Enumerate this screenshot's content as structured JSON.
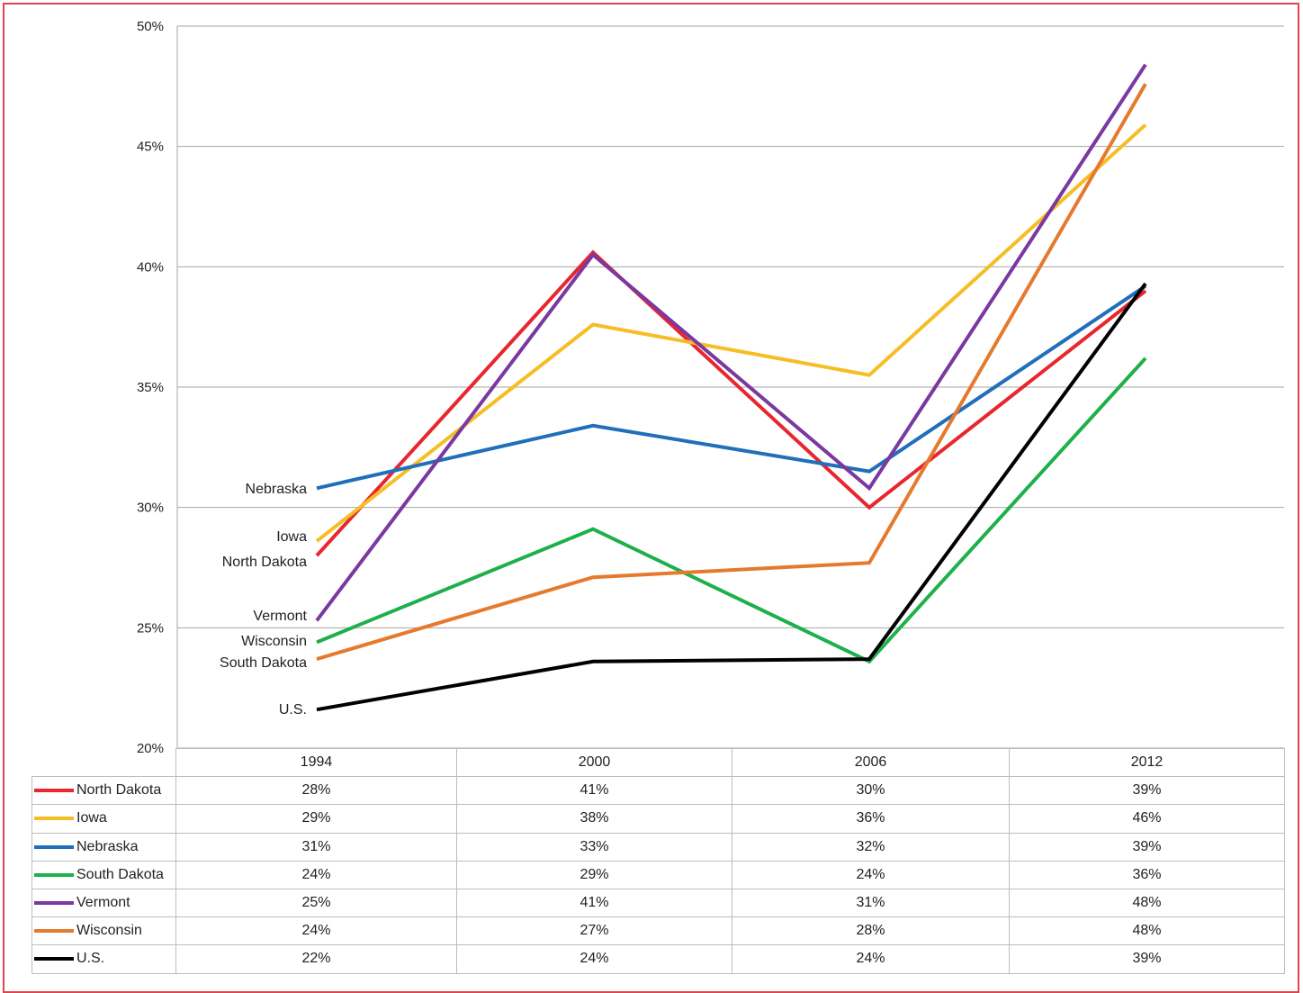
{
  "chart_data": {
    "type": "line",
    "title": "",
    "xlabel": "",
    "ylabel": "",
    "categories": [
      "1994",
      "2000",
      "2006",
      "2012"
    ],
    "ylim": [
      20,
      50
    ],
    "yticks": [
      "20%",
      "25%",
      "30%",
      "35%",
      "40%",
      "45%",
      "50%"
    ],
    "grid": true,
    "legend": "data table below chart",
    "series": [
      {
        "name": "North Dakota",
        "color": "#e8262d",
        "values": [
          28,
          40.6,
          30,
          39
        ],
        "table": [
          "28%",
          "41%",
          "30%",
          "39%"
        ]
      },
      {
        "name": "Iowa",
        "color": "#f5be25",
        "values": [
          28.6,
          37.6,
          35.5,
          45.9
        ],
        "table": [
          "29%",
          "38%",
          "36%",
          "46%"
        ]
      },
      {
        "name": "Nebraska",
        "color": "#1f6fba",
        "values": [
          30.8,
          33.4,
          31.5,
          39.2
        ],
        "table": [
          "31%",
          "33%",
          "32%",
          "39%"
        ]
      },
      {
        "name": "South Dakota",
        "color": "#1fb04c",
        "values": [
          24.4,
          29.1,
          23.6,
          36.2
        ],
        "table": [
          "24%",
          "29%",
          "24%",
          "36%"
        ]
      },
      {
        "name": "Vermont",
        "color": "#7a38a0",
        "values": [
          25.3,
          40.5,
          30.8,
          48.4
        ],
        "table": [
          "25%",
          "41%",
          "31%",
          "48%"
        ]
      },
      {
        "name": "Wisconsin",
        "color": "#e57a2e",
        "values": [
          23.7,
          27.1,
          27.7,
          47.6
        ],
        "table": [
          "24%",
          "27%",
          "28%",
          "48%"
        ]
      },
      {
        "name": "U.S.",
        "color": "#000000",
        "values": [
          21.6,
          23.6,
          23.7,
          39.3
        ],
        "table": [
          "22%",
          "24%",
          "24%",
          "39%"
        ]
      }
    ],
    "line_labels": [
      "Nebraska",
      "Iowa",
      "North Dakota",
      "Vermont",
      "Wisconsin",
      "South Dakota",
      "U.S."
    ]
  }
}
